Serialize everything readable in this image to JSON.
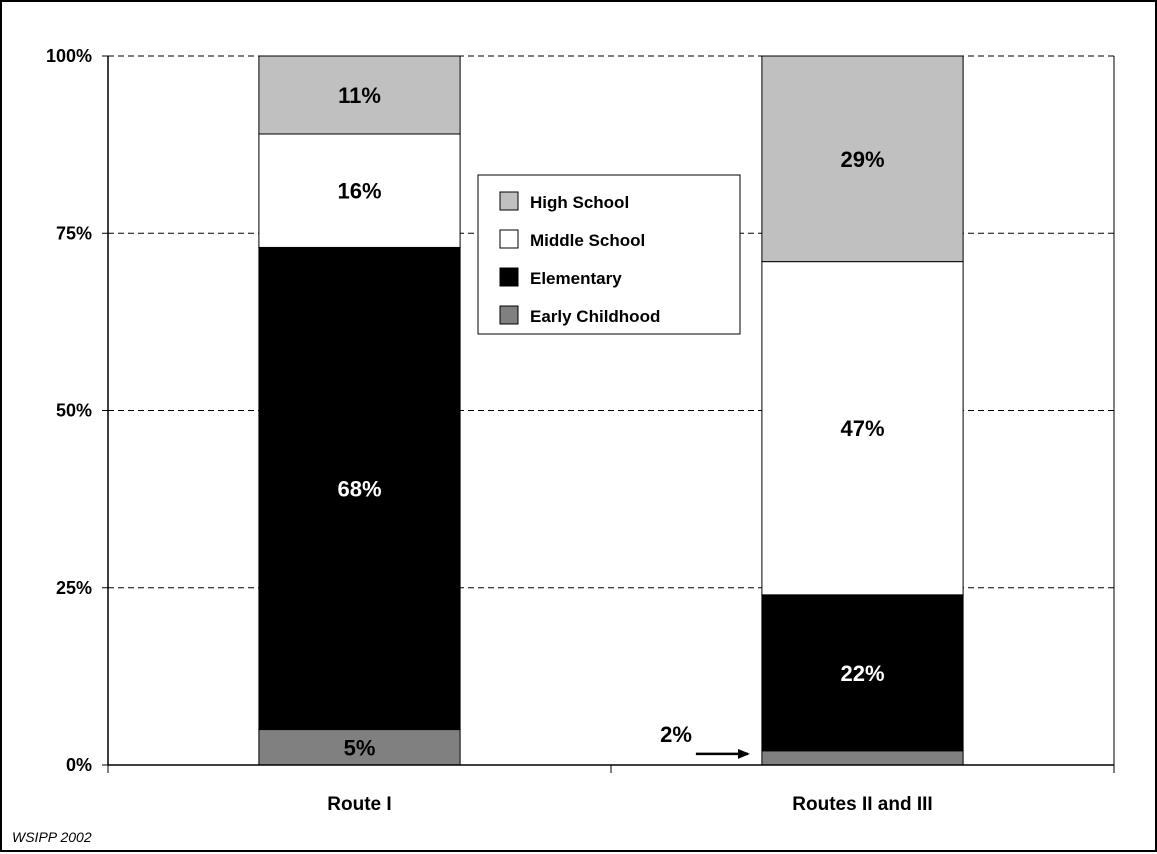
{
  "chart_data": {
    "type": "bar",
    "stacked": true,
    "categories": [
      "Route I",
      "Routes II and III"
    ],
    "series": [
      {
        "name": "Early Childhood",
        "values": [
          5,
          2
        ],
        "labels": [
          "5%",
          "2%"
        ],
        "color": "#808080",
        "label_color": "#000000"
      },
      {
        "name": "Elementary",
        "values": [
          68,
          22
        ],
        "labels": [
          "68%",
          "22%"
        ],
        "color": "#000000",
        "label_color": "#ffffff"
      },
      {
        "name": "Middle School",
        "values": [
          16,
          47
        ],
        "labels": [
          "16%",
          "47%"
        ],
        "color": "#ffffff",
        "label_color": "#000000"
      },
      {
        "name": "High School",
        "values": [
          11,
          29
        ],
        "labels": [
          "11%",
          "29%"
        ],
        "color": "#c0c0c0",
        "label_color": "#000000"
      }
    ],
    "legend_order": [
      "High School",
      "Middle School",
      "Elementary",
      "Early Childhood"
    ],
    "ylim": [
      0,
      100
    ],
    "yticks": [
      0,
      25,
      50,
      75,
      100
    ],
    "ytick_labels": [
      "0%",
      "25%",
      "50%",
      "75%",
      "100%"
    ],
    "grid": "dashed horizontal",
    "legend_position": "center",
    "annotation": {
      "text": "2%",
      "category": "Routes II and III",
      "series": "Early Childhood",
      "arrow": true
    }
  },
  "source_note": "WSIPP 2002"
}
